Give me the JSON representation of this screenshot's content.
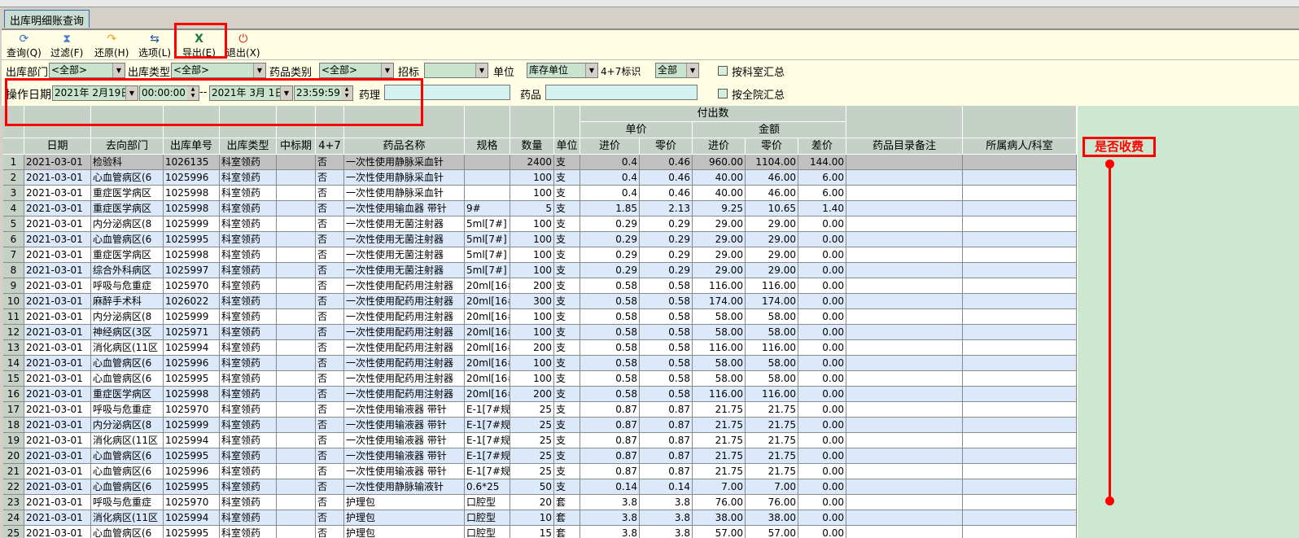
{
  "window": {
    "tab_title": "出库明细账查询"
  },
  "toolbar": {
    "buttons": [
      {
        "label": "查询(Q)",
        "icon": "refresh-icon",
        "color": "#3a6fc4"
      },
      {
        "label": "过滤(F)",
        "icon": "hourglass-icon",
        "color": "#4a7fd0"
      },
      {
        "label": "还原(H)",
        "icon": "redo-arrow-icon",
        "color": "#f0a020"
      },
      {
        "label": "选项(L)",
        "icon": "options-icon",
        "color": "#2050a0"
      },
      {
        "label": "导出(E)",
        "icon": "excel-export-icon",
        "color": "#1e7a3a"
      },
      {
        "label": "退出(X)",
        "icon": "power-icon",
        "color": "#d02010"
      }
    ]
  },
  "filters": {
    "dept_label": "出库部门",
    "dept_value": "<全部>",
    "type_label": "出库类型",
    "type_value": "<全部>",
    "category_label": "药品类别",
    "category_value": "<全部>",
    "bid_label": "招标",
    "bid_value": "",
    "unit_label": "单位",
    "unit_value": "库存单位",
    "flag47_label": "4+7标识",
    "flag47_value": "全部",
    "by_dept_label": "按科室汇总",
    "by_dept_checked": false,
    "date_label": "操作日期",
    "date_from": "2021年 2月19日",
    "time_from": "00:00:00",
    "dash": "--",
    "date_to": "2021年 3月 1日",
    "time_to": "23:59:59",
    "pharm_label": "药理",
    "pharm_value": "",
    "drug_label": "药品",
    "drug_value": "",
    "by_hospital_label": "按全院汇总",
    "by_hospital_checked": false
  },
  "table": {
    "group_header": "付出数",
    "unit_price_header": "单价",
    "amount_header": "金额",
    "columns": [
      "日期",
      "去向部门",
      "出库单号",
      "出库类型",
      "中标期",
      "4+7",
      "药品名称",
      "规格",
      "数量",
      "单位",
      "进价",
      "零价",
      "进价",
      "零价",
      "差价",
      "药品目录备注",
      "所属病人/科室"
    ],
    "rows": [
      [
        "2021-03-01",
        "检验科",
        "1026135",
        "科室领药",
        "",
        "否",
        "一次性使用静脉采血针",
        "",
        "2400",
        "支",
        "0.4",
        "0.46",
        "960.00",
        "1104.00",
        "144.00",
        "",
        ""
      ],
      [
        "2021-03-01",
        "心血管病区(6",
        "1025996",
        "科室领药",
        "",
        "否",
        "一次性使用静脉采血针",
        "",
        "100",
        "支",
        "0.4",
        "0.46",
        "40.00",
        "46.00",
        "6.00",
        "",
        ""
      ],
      [
        "2021-03-01",
        "重症医学病区",
        "1025998",
        "科室领药",
        "",
        "否",
        "一次性使用静脉采血针",
        "",
        "100",
        "支",
        "0.4",
        "0.46",
        "40.00",
        "46.00",
        "6.00",
        "",
        ""
      ],
      [
        "2021-03-01",
        "重症医学病区",
        "1025998",
        "科室领药",
        "",
        "否",
        "一次性使用输血器 带针",
        "9#",
        "5",
        "支",
        "1.85",
        "2.13",
        "9.25",
        "10.65",
        "1.40",
        "",
        ""
      ],
      [
        "2021-03-01",
        "内分泌病区(8",
        "1025999",
        "科室领药",
        "",
        "否",
        "一次性使用无菌注射器",
        "5ml[7#]",
        "100",
        "支",
        "0.29",
        "0.29",
        "29.00",
        "29.00",
        "0.00",
        "",
        ""
      ],
      [
        "2021-03-01",
        "心血管病区(6",
        "1025995",
        "科室领药",
        "",
        "否",
        "一次性使用无菌注射器",
        "5ml[7#]",
        "100",
        "支",
        "0.29",
        "0.29",
        "29.00",
        "29.00",
        "0.00",
        "",
        ""
      ],
      [
        "2021-03-01",
        "重症医学病区",
        "1025998",
        "科室领药",
        "",
        "否",
        "一次性使用无菌注射器",
        "5ml[7#]",
        "100",
        "支",
        "0.29",
        "0.29",
        "29.00",
        "29.00",
        "0.00",
        "",
        ""
      ],
      [
        "2021-03-01",
        "综合外科病区",
        "1025997",
        "科室领药",
        "",
        "否",
        "一次性使用无菌注射器",
        "5ml[7#]",
        "100",
        "支",
        "0.29",
        "0.29",
        "29.00",
        "29.00",
        "0.00",
        "",
        ""
      ],
      [
        "2021-03-01",
        "呼吸与危重症",
        "1025970",
        "科室领药",
        "",
        "否",
        "一次性使用配药用注射器",
        "20ml[16#",
        "200",
        "支",
        "0.58",
        "0.58",
        "116.00",
        "116.00",
        "0.00",
        "",
        ""
      ],
      [
        "2021-03-01",
        "麻醉手术科",
        "1026022",
        "科室领药",
        "",
        "否",
        "一次性使用配药用注射器",
        "20ml[16#",
        "300",
        "支",
        "0.58",
        "0.58",
        "174.00",
        "174.00",
        "0.00",
        "",
        ""
      ],
      [
        "2021-03-01",
        "内分泌病区(8",
        "1025999",
        "科室领药",
        "",
        "否",
        "一次性使用配药用注射器",
        "20ml[16#",
        "100",
        "支",
        "0.58",
        "0.58",
        "58.00",
        "58.00",
        "0.00",
        "",
        ""
      ],
      [
        "2021-03-01",
        "神经病区(3区",
        "1025971",
        "科室领药",
        "",
        "否",
        "一次性使用配药用注射器",
        "20ml[16#",
        "100",
        "支",
        "0.58",
        "0.58",
        "58.00",
        "58.00",
        "0.00",
        "",
        ""
      ],
      [
        "2021-03-01",
        "消化病区(11区",
        "1025994",
        "科室领药",
        "",
        "否",
        "一次性使用配药用注射器",
        "20ml[16#",
        "200",
        "支",
        "0.58",
        "0.58",
        "116.00",
        "116.00",
        "0.00",
        "",
        ""
      ],
      [
        "2021-03-01",
        "心血管病区(6",
        "1025996",
        "科室领药",
        "",
        "否",
        "一次性使用配药用注射器",
        "20ml[16#",
        "100",
        "支",
        "0.58",
        "0.58",
        "58.00",
        "58.00",
        "0.00",
        "",
        ""
      ],
      [
        "2021-03-01",
        "心血管病区(6",
        "1025995",
        "科室领药",
        "",
        "否",
        "一次性使用配药用注射器",
        "20ml[16#",
        "100",
        "支",
        "0.58",
        "0.58",
        "58.00",
        "58.00",
        "0.00",
        "",
        ""
      ],
      [
        "2021-03-01",
        "重症医学病区",
        "1025998",
        "科室领药",
        "",
        "否",
        "一次性使用配药用注射器",
        "20ml[16#",
        "200",
        "支",
        "0.58",
        "0.58",
        "116.00",
        "116.00",
        "0.00",
        "",
        ""
      ],
      [
        "2021-03-01",
        "呼吸与危重症",
        "1025970",
        "科室领药",
        "",
        "否",
        "一次性使用输液器 带针",
        "E-1[7#规",
        "25",
        "支",
        "0.87",
        "0.87",
        "21.75",
        "21.75",
        "0.00",
        "",
        ""
      ],
      [
        "2021-03-01",
        "内分泌病区(8",
        "1025999",
        "科室领药",
        "",
        "否",
        "一次性使用输液器 带针",
        "E-1[7#规",
        "25",
        "支",
        "0.87",
        "0.87",
        "21.75",
        "21.75",
        "0.00",
        "",
        ""
      ],
      [
        "2021-03-01",
        "消化病区(11区",
        "1025994",
        "科室领药",
        "",
        "否",
        "一次性使用输液器 带针",
        "E-1[7#规",
        "25",
        "支",
        "0.87",
        "0.87",
        "21.75",
        "21.75",
        "0.00",
        "",
        ""
      ],
      [
        "2021-03-01",
        "心血管病区(6",
        "1025995",
        "科室领药",
        "",
        "否",
        "一次性使用输液器 带针",
        "E-1[7#规",
        "25",
        "支",
        "0.87",
        "0.87",
        "21.75",
        "21.75",
        "0.00",
        "",
        ""
      ],
      [
        "2021-03-01",
        "心血管病区(6",
        "1025996",
        "科室领药",
        "",
        "否",
        "一次性使用输液器 带针",
        "E-1[7#规",
        "25",
        "支",
        "0.87",
        "0.87",
        "21.75",
        "21.75",
        "0.00",
        "",
        ""
      ],
      [
        "2021-03-01",
        "心血管病区(6",
        "1025995",
        "科室领药",
        "",
        "否",
        "一次性使用静脉输液针",
        "0.6*25",
        "50",
        "支",
        "0.14",
        "0.14",
        "7.00",
        "7.00",
        "0.00",
        "",
        ""
      ],
      [
        "2021-03-01",
        "呼吸与危重症",
        "1025970",
        "科室领药",
        "",
        "否",
        "护理包",
        "口腔型",
        "20",
        "套",
        "3.8",
        "3.8",
        "76.00",
        "76.00",
        "0.00",
        "",
        ""
      ],
      [
        "2021-03-01",
        "消化病区(11区",
        "1025994",
        "科室领药",
        "",
        "否",
        "护理包",
        "口腔型",
        "10",
        "套",
        "3.8",
        "3.8",
        "38.00",
        "38.00",
        "0.00",
        "",
        ""
      ],
      [
        "2021-03-01",
        "心血管病区(6",
        "1025995",
        "科室领药",
        "",
        "否",
        "护理包",
        "口腔型",
        "15",
        "套",
        "3.8",
        "3.8",
        "57.00",
        "57.00",
        "0.00",
        "",
        ""
      ]
    ]
  },
  "annotation": {
    "label": "是否收费",
    "color": "#ff0000"
  }
}
